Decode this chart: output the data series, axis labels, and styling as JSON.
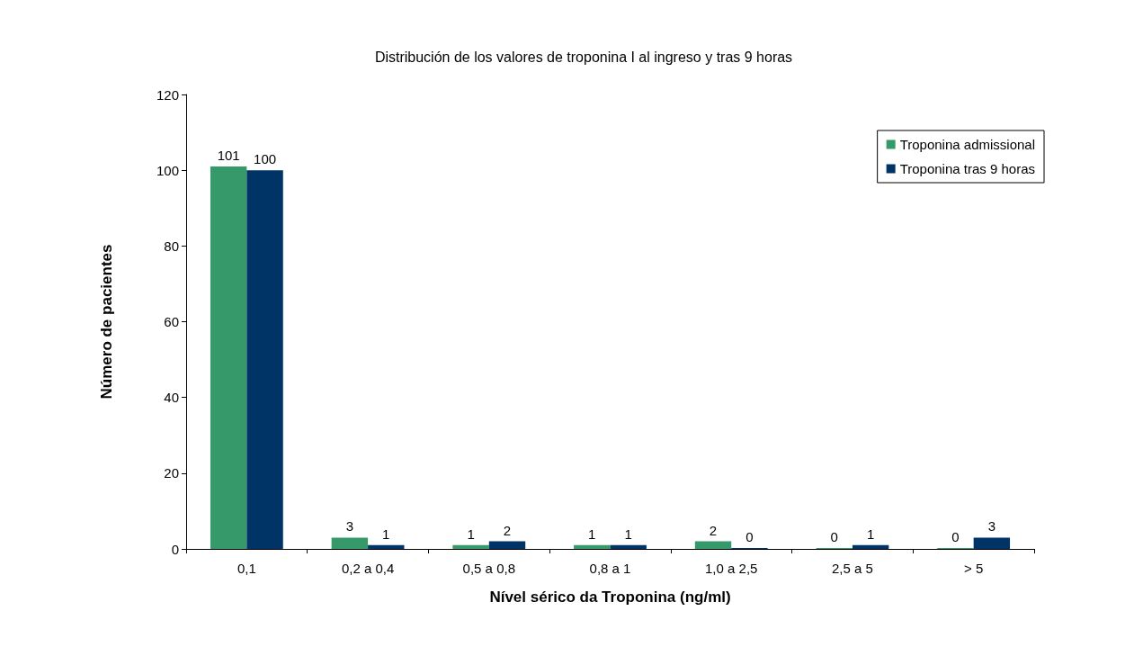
{
  "chart_data": {
    "type": "bar",
    "title": "Distribución de los valores de troponina I al ingreso y tras 9 horas",
    "xlabel": "Nível sérico da Troponina (ng/ml)",
    "ylabel": "Número de pacientes",
    "categories": [
      "0,1",
      "0,2 a 0,4",
      "0,5 a 0,8",
      "0,8 a 1",
      "1,0 a 2,5",
      "2,5 a 5",
      "> 5"
    ],
    "series": [
      {
        "name": "Troponina admissional",
        "color": "#36996a",
        "values": [
          101,
          3,
          1,
          1,
          2,
          0,
          0
        ]
      },
      {
        "name": "Troponina tras 9 horas",
        "color": "#003366",
        "values": [
          100,
          1,
          2,
          1,
          0,
          1,
          3
        ]
      }
    ],
    "ylim": [
      0,
      120
    ],
    "yticks": [
      0,
      20,
      40,
      60,
      80,
      100,
      120
    ],
    "grid": false,
    "legend": "top right",
    "data_labels": true
  }
}
